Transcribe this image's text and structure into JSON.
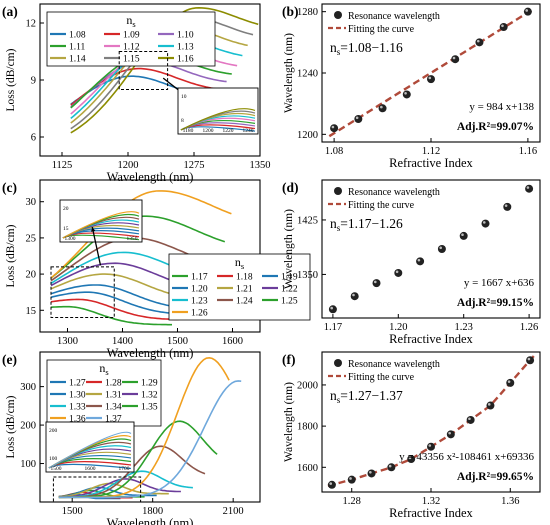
{
  "panel_labels": [
    "(a)",
    "(b)",
    "(c)",
    "(d)",
    "(e)",
    "(f)"
  ],
  "legend_title": "n",
  "legend_title_sub": "s",
  "common": {
    "loss_ylabel": "Loss (dB/cm)",
    "wavelength_xlabel": "Wavelength (nm)",
    "fit_ylabel": "Wavelength (nm)",
    "fit_xlabel": "Refractive Index",
    "legend_points": "Resonance wavelength",
    "legend_fit": "Fitting the curve"
  },
  "chart_data": [
    {
      "panel": "(a)",
      "type": "line",
      "xlabel": "Wavelength (nm)",
      "ylabel": "Loss (dB/cm)",
      "xlim": [
        1100,
        1350
      ],
      "ylim": [
        5,
        13
      ],
      "xticks": [
        "1125",
        "1200",
        "1275",
        "1350"
      ],
      "yticks": [
        "6",
        "9",
        "12"
      ],
      "legend": [
        "1.08",
        "1.09",
        "1.10",
        "1.11",
        "1.12",
        "1.13",
        "1.14",
        "1.15",
        "1.16"
      ],
      "colors": [
        "#1f77b4",
        "#d62728",
        "#9467bd",
        "#2ca02c",
        "#e377c2",
        "#17becf",
        "#b5a642",
        "#7f7f7f",
        "#8c8c00"
      ],
      "peaks": [
        {
          "name": "1.08",
          "x": 1204,
          "y": 9.2
        },
        {
          "name": "1.09",
          "x": 1212,
          "y": 9.6
        },
        {
          "name": "1.10",
          "x": 1220,
          "y": 10.0
        },
        {
          "name": "1.11",
          "x": 1226,
          "y": 10.4
        },
        {
          "name": "1.12",
          "x": 1238,
          "y": 10.8
        },
        {
          "name": "1.13",
          "x": 1248,
          "y": 11.3
        },
        {
          "name": "1.14",
          "x": 1258,
          "y": 11.8
        },
        {
          "name": "1.15",
          "x": 1270,
          "y": 12.3
        },
        {
          "name": "1.16",
          "x": 1280,
          "y": 12.8
        }
      ],
      "inset_xticks": [
        "1180",
        "1200",
        "1220",
        "1240"
      ],
      "inset_yticks": [
        "8",
        "10"
      ]
    },
    {
      "panel": "(b)",
      "type": "scatter",
      "xlabel": "Refractive Index",
      "ylabel": "Wavelength (nm)",
      "xlim": [
        1.075,
        1.165
      ],
      "ylim": [
        1195,
        1285
      ],
      "xticks": [
        "1.08",
        "1.12",
        "1.16"
      ],
      "yticks": [
        "1200",
        "1240",
        "1280"
      ],
      "x": [
        1.08,
        1.09,
        1.1,
        1.11,
        1.12,
        1.13,
        1.14,
        1.15,
        1.16
      ],
      "y": [
        1204,
        1210,
        1217,
        1226,
        1236,
        1249,
        1260,
        1270,
        1280
      ],
      "fit": {
        "type": "linear",
        "slope": 984,
        "intercept": 138
      },
      "range_label": "n",
      "range_label_sub": "s",
      "range_label_value": "=1.08−1.16",
      "equation": "y = 984 x+138",
      "adj_r2": "Adj.R²=99.07%"
    },
    {
      "panel": "(c)",
      "type": "line",
      "xlabel": "Wavelength (nm)",
      "ylabel": "Loss (dB/cm)",
      "xlim": [
        1250,
        1650
      ],
      "ylim": [
        12,
        33
      ],
      "xticks": [
        "1300",
        "1400",
        "1500",
        "1600"
      ],
      "yticks": [
        "15",
        "20",
        "25",
        "30"
      ],
      "legend": [
        "1.17",
        "1.18",
        "1.19",
        "1.20",
        "1.21",
        "1.22",
        "1.23",
        "1.24",
        "1.25",
        "1.26"
      ],
      "colors": [
        "#2ca02c",
        "#d62728",
        "#1f77b4",
        "#1f77b4",
        "#b5a642",
        "#6b3d9a",
        "#17becf",
        "#8c564b",
        "#2ca02c",
        "#f0a020"
      ],
      "peaks": [
        {
          "name": "1.17",
          "x": 1300,
          "y": 15.5
        },
        {
          "name": "1.18",
          "x": 1320,
          "y": 16.5
        },
        {
          "name": "1.19",
          "x": 1336,
          "y": 17.5
        },
        {
          "name": "1.20",
          "x": 1352,
          "y": 18.5
        },
        {
          "name": "1.21",
          "x": 1368,
          "y": 20.0
        },
        {
          "name": "1.22",
          "x": 1385,
          "y": 21.5
        },
        {
          "name": "1.23",
          "x": 1402,
          "y": 23.0
        },
        {
          "name": "1.24",
          "x": 1420,
          "y": 25.0
        },
        {
          "name": "1.25",
          "x": 1442,
          "y": 28.0
        },
        {
          "name": "1.26",
          "x": 1468,
          "y": 31.5
        }
      ],
      "inset_xticks": [
        "1300",
        "1350"
      ],
      "inset_yticks": [
        "15",
        "20"
      ]
    },
    {
      "panel": "(d)",
      "type": "scatter",
      "xlabel": "Refractive Index",
      "ylabel": "Wavelength (nm)",
      "xlim": [
        1.165,
        1.265
      ],
      "ylim": [
        1290,
        1480
      ],
      "xticks": [
        "1.17",
        "1.20",
        "1.23",
        "1.26"
      ],
      "yticks": [
        "1350",
        "1425"
      ],
      "x": [
        1.17,
        1.18,
        1.19,
        1.2,
        1.21,
        1.22,
        1.23,
        1.24,
        1.25,
        1.26
      ],
      "y": [
        1302,
        1320,
        1338,
        1352,
        1368,
        1385,
        1403,
        1420,
        1443,
        1468
      ],
      "fit": {
        "type": "linear",
        "slope": 1667,
        "intercept": 636
      },
      "range_label": "n",
      "range_label_sub": "s",
      "range_label_value": "=1.17−1.26",
      "equation": "y = 1667 x+636",
      "adj_r2": "Adj.R²=99.15%"
    },
    {
      "panel": "(e)",
      "type": "line",
      "xlabel": "Wavelength (nm)",
      "ylabel": "Loss (dB/cm)",
      "xlim": [
        1380,
        2200
      ],
      "ylim": [
        0,
        390
      ],
      "xticks": [
        "1500",
        "1800",
        "2100"
      ],
      "yticks": [
        "100",
        "200",
        "300"
      ],
      "legend": [
        "1.27",
        "1.28",
        "1.29",
        "1.30",
        "1.31",
        "1.32",
        "1.33",
        "1.34",
        "1.35",
        "1.36",
        "1.37"
      ],
      "colors": [
        "#1f77b4",
        "#d62728",
        "#2ca02c",
        "#1f77b4",
        "#b5a642",
        "#6b3d9a",
        "#17becf",
        "#8c564b",
        "#2ca02c",
        "#f0a020",
        "#6fa8dc"
      ],
      "peaks": [
        {
          "name": "1.27",
          "x": 1515,
          "y": 20
        },
        {
          "name": "1.28",
          "x": 1540,
          "y": 25
        },
        {
          "name": "1.29",
          "x": 1570,
          "y": 30
        },
        {
          "name": "1.30",
          "x": 1600,
          "y": 38
        },
        {
          "name": "1.31",
          "x": 1640,
          "y": 48
        },
        {
          "name": "1.32",
          "x": 1700,
          "y": 60
        },
        {
          "name": "1.33",
          "x": 1760,
          "y": 80
        },
        {
          "name": "1.34",
          "x": 1830,
          "y": 145
        },
        {
          "name": "1.35",
          "x": 1900,
          "y": 210
        },
        {
          "name": "1.36",
          "x": 2010,
          "y": 375
        },
        {
          "name": "1.37",
          "x": 2120,
          "y": 315
        }
      ],
      "inset_xticks": [
        "1500",
        "1600",
        "1700"
      ],
      "inset_yticks": [
        "100",
        "200"
      ]
    },
    {
      "panel": "(f)",
      "type": "scatter",
      "xlabel": "Refractive Index",
      "ylabel": "Wavelength (nm)",
      "xlim": [
        1.265,
        1.375
      ],
      "ylim": [
        1480,
        2160
      ],
      "xticks": [
        "1.28",
        "1.32",
        "1.36"
      ],
      "yticks": [
        "1600",
        "1800",
        "2000"
      ],
      "x": [
        1.27,
        1.28,
        1.29,
        1.3,
        1.31,
        1.32,
        1.33,
        1.34,
        1.35,
        1.36,
        1.37
      ],
      "y": [
        1515,
        1540,
        1570,
        1600,
        1640,
        1700,
        1760,
        1830,
        1900,
        2010,
        2120
      ],
      "fit": {
        "type": "quadratic",
        "a": 43356,
        "b": -108461,
        "c": 69336
      },
      "range_label": "n",
      "range_label_sub": "s",
      "range_label_value": "=1.27−1.37",
      "equation": "y = 43356 x²-108461 x+69336",
      "adj_r2": "Adj.R²=99.65%"
    }
  ]
}
